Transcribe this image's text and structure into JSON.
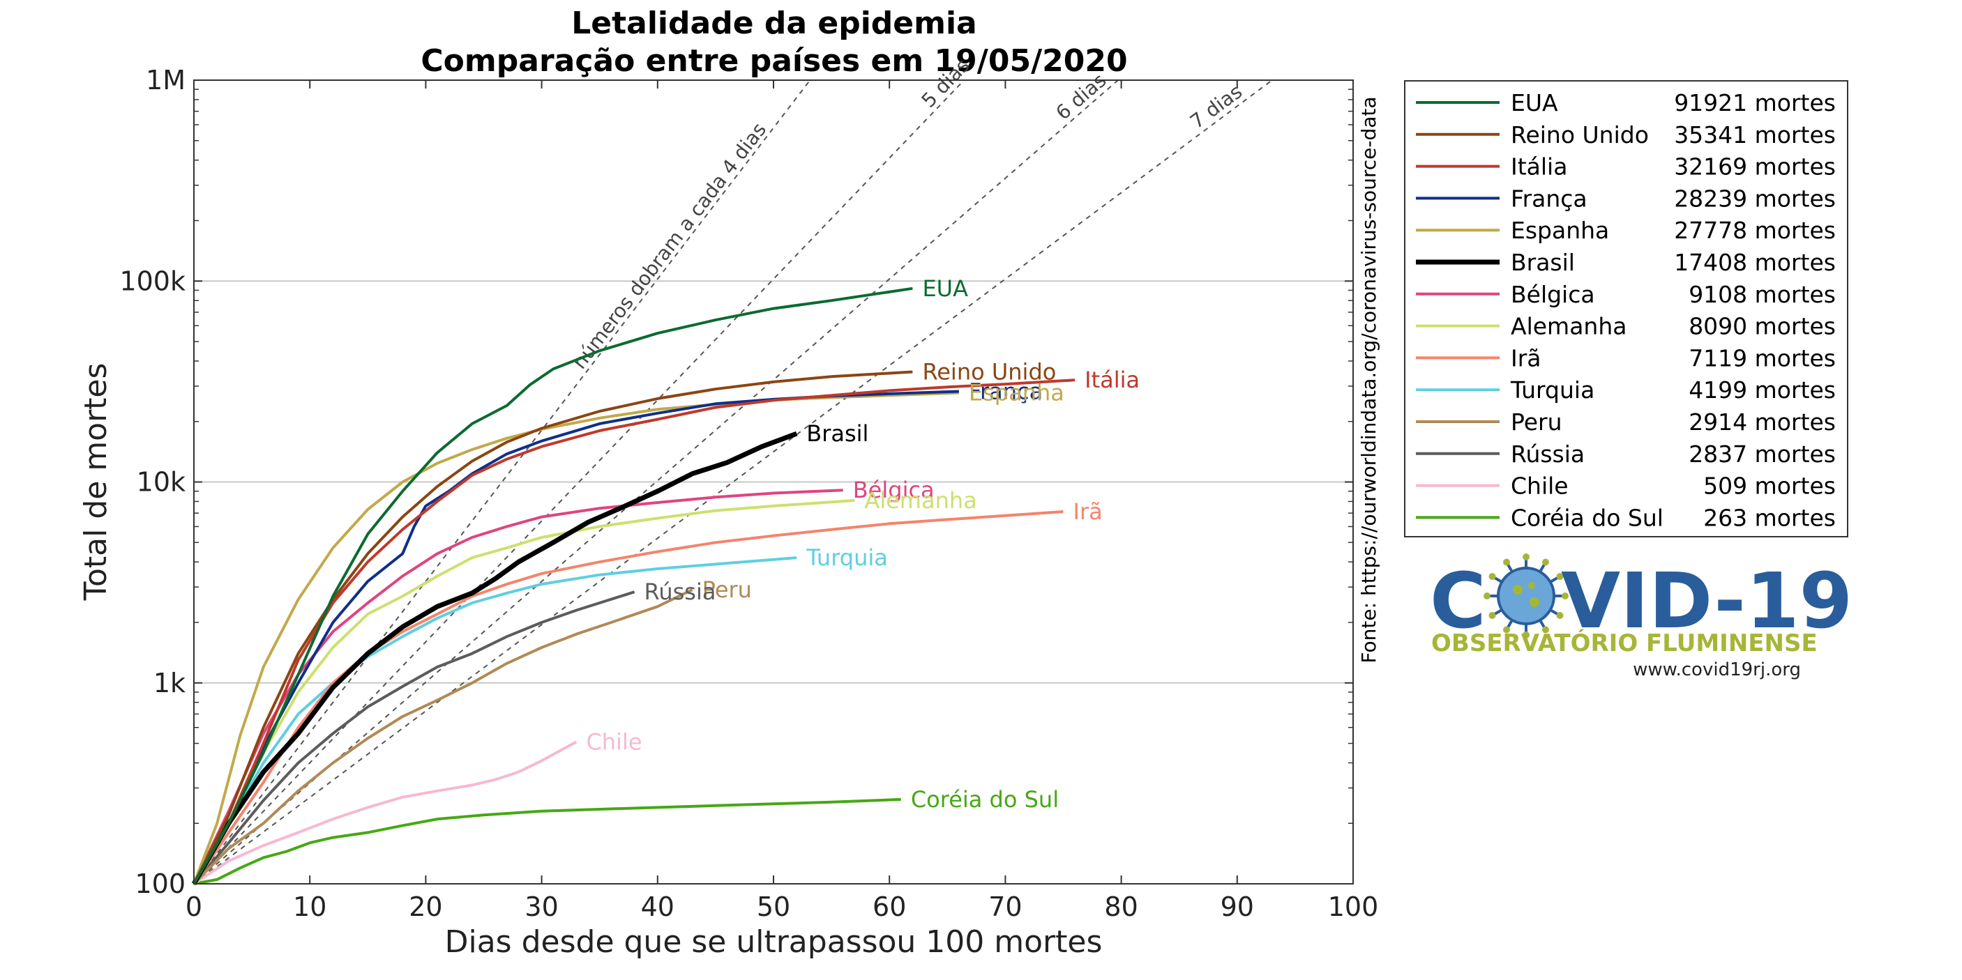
{
  "chart_data": {
    "type": "line",
    "title": "Letalidade da epidemia",
    "subtitle": "Comparação entre países em 19/05/2020",
    "xlabel": "Dias desde que se ultrapassou 100 mortes",
    "ylabel": "Total de mortes",
    "xlim": [
      0,
      100
    ],
    "ylim": [
      100,
      1000000
    ],
    "yscale": "log",
    "x_ticks": [
      0,
      10,
      20,
      30,
      40,
      50,
      60,
      70,
      80,
      90,
      100
    ],
    "y_ticks": [
      {
        "value": 100,
        "label": "100"
      },
      {
        "value": 1000,
        "label": "1k"
      },
      {
        "value": 10000,
        "label": "10k"
      },
      {
        "value": 100000,
        "label": "100k"
      },
      {
        "value": 1000000,
        "label": "1M"
      }
    ],
    "grid": "horizontal",
    "legend": "right",
    "source": "Fonte: https://ourworldindata.org/coronavirus-source-data",
    "reference_lines": [
      {
        "doubling_days": 4,
        "label": "números dobram a cada 4 dias"
      },
      {
        "doubling_days": 5,
        "label": "5 dias"
      },
      {
        "doubling_days": 6,
        "label": "6 dias"
      },
      {
        "doubling_days": 7,
        "label": "7 dias"
      }
    ],
    "series": [
      {
        "name": "EUA",
        "deaths": 91921,
        "legend_value": "91921 mortes",
        "color": "#0b6b30",
        "width": 4,
        "points": [
          [
            0,
            100
          ],
          [
            3,
            200
          ],
          [
            6,
            450
          ],
          [
            9,
            1100
          ],
          [
            12,
            2700
          ],
          [
            15,
            5500
          ],
          [
            18,
            9000
          ],
          [
            21,
            14000
          ],
          [
            24,
            19500
          ],
          [
            27,
            24000
          ],
          [
            29,
            30500
          ],
          [
            31,
            36500
          ],
          [
            35,
            45000
          ],
          [
            40,
            55000
          ],
          [
            45,
            64000
          ],
          [
            50,
            73000
          ],
          [
            55,
            80000
          ],
          [
            62,
            91921
          ]
        ]
      },
      {
        "name": "Reino Unido",
        "deaths": 35341,
        "legend_value": "35341 mortes",
        "color": "#8b4513",
        "width": 4,
        "points": [
          [
            0,
            100
          ],
          [
            3,
            220
          ],
          [
            6,
            600
          ],
          [
            9,
            1400
          ],
          [
            12,
            2600
          ],
          [
            15,
            4400
          ],
          [
            18,
            6700
          ],
          [
            21,
            9500
          ],
          [
            24,
            12700
          ],
          [
            27,
            15800
          ],
          [
            30,
            18500
          ],
          [
            35,
            22500
          ],
          [
            40,
            26000
          ],
          [
            45,
            29000
          ],
          [
            50,
            31500
          ],
          [
            55,
            33500
          ],
          [
            62,
            35341
          ]
        ]
      },
      {
        "name": "Itália",
        "deaths": 32169,
        "legend_value": "32169 mortes",
        "color": "#c0392b",
        "width": 4,
        "points": [
          [
            0,
            100
          ],
          [
            3,
            200
          ],
          [
            6,
            500
          ],
          [
            9,
            1300
          ],
          [
            12,
            2500
          ],
          [
            15,
            4000
          ],
          [
            18,
            5800
          ],
          [
            21,
            8000
          ],
          [
            24,
            10800
          ],
          [
            27,
            13000
          ],
          [
            30,
            15000
          ],
          [
            35,
            18000
          ],
          [
            40,
            20500
          ],
          [
            45,
            23500
          ],
          [
            50,
            25500
          ],
          [
            55,
            27000
          ],
          [
            60,
            28500
          ],
          [
            65,
            29700
          ],
          [
            70,
            30700
          ],
          [
            76,
            32169
          ]
        ]
      },
      {
        "name": "França",
        "deaths": 28239,
        "legend_value": "28239 mortes",
        "color": "#0f2f8a",
        "width": 4,
        "points": [
          [
            0,
            100
          ],
          [
            3,
            200
          ],
          [
            6,
            480
          ],
          [
            9,
            1000
          ],
          [
            12,
            2000
          ],
          [
            15,
            3200
          ],
          [
            18,
            4400
          ],
          [
            19,
            6000
          ],
          [
            20,
            7600
          ],
          [
            22,
            9000
          ],
          [
            24,
            11000
          ],
          [
            27,
            13800
          ],
          [
            30,
            16000
          ],
          [
            35,
            19500
          ],
          [
            40,
            22000
          ],
          [
            45,
            24500
          ],
          [
            50,
            25800
          ],
          [
            55,
            26800
          ],
          [
            60,
            27500
          ],
          [
            66,
            28239
          ]
        ]
      },
      {
        "name": "Espanha",
        "deaths": 27778,
        "legend_value": "27778 mortes",
        "color": "#c2a94b",
        "width": 4,
        "points": [
          [
            0,
            100
          ],
          [
            2,
            200
          ],
          [
            4,
            550
          ],
          [
            6,
            1200
          ],
          [
            9,
            2600
          ],
          [
            12,
            4700
          ],
          [
            15,
            7300
          ],
          [
            18,
            10000
          ],
          [
            21,
            12400
          ],
          [
            24,
            14500
          ],
          [
            27,
            16500
          ],
          [
            30,
            18300
          ],
          [
            35,
            20800
          ],
          [
            40,
            23000
          ],
          [
            45,
            24300
          ],
          [
            50,
            25600
          ],
          [
            55,
            26300
          ],
          [
            60,
            27000
          ],
          [
            66,
            27778
          ]
        ]
      },
      {
        "name": "Brasil",
        "deaths": 17408,
        "legend_value": "17408 mortes",
        "color": "#000000",
        "width": 7,
        "points": [
          [
            0,
            100
          ],
          [
            3,
            200
          ],
          [
            6,
            360
          ],
          [
            9,
            560
          ],
          [
            12,
            950
          ],
          [
            15,
            1400
          ],
          [
            18,
            1900
          ],
          [
            21,
            2400
          ],
          [
            24,
            2800
          ],
          [
            26,
            3300
          ],
          [
            28,
            4000
          ],
          [
            31,
            5000
          ],
          [
            34,
            6300
          ],
          [
            37,
            7500
          ],
          [
            40,
            9000
          ],
          [
            43,
            11000
          ],
          [
            46,
            12500
          ],
          [
            49,
            15000
          ],
          [
            52,
            17408
          ]
        ]
      },
      {
        "name": "Bélgica",
        "deaths": 9108,
        "legend_value": "9108 mortes",
        "color": "#e0447e",
        "width": 4,
        "points": [
          [
            0,
            100
          ],
          [
            3,
            230
          ],
          [
            6,
            560
          ],
          [
            9,
            1100
          ],
          [
            12,
            1800
          ],
          [
            15,
            2500
          ],
          [
            18,
            3400
          ],
          [
            21,
            4400
          ],
          [
            24,
            5300
          ],
          [
            27,
            6000
          ],
          [
            30,
            6700
          ],
          [
            35,
            7400
          ],
          [
            40,
            7900
          ],
          [
            45,
            8400
          ],
          [
            50,
            8800
          ],
          [
            56,
            9108
          ]
        ]
      },
      {
        "name": "Alemanha",
        "deaths": 8090,
        "legend_value": "8090 mortes",
        "color": "#cde06c",
        "width": 4,
        "points": [
          [
            0,
            100
          ],
          [
            3,
            200
          ],
          [
            6,
            450
          ],
          [
            9,
            900
          ],
          [
            12,
            1500
          ],
          [
            15,
            2200
          ],
          [
            18,
            2700
          ],
          [
            21,
            3400
          ],
          [
            24,
            4200
          ],
          [
            27,
            4700
          ],
          [
            30,
            5300
          ],
          [
            35,
            6000
          ],
          [
            40,
            6600
          ],
          [
            45,
            7200
          ],
          [
            50,
            7600
          ],
          [
            57,
            8090
          ]
        ]
      },
      {
        "name": "Irã",
        "deaths": 7119,
        "legend_value": "7119 mortes",
        "color": "#f4846c",
        "width": 4,
        "points": [
          [
            0,
            100
          ],
          [
            3,
            180
          ],
          [
            6,
            320
          ],
          [
            9,
            600
          ],
          [
            12,
            1000
          ],
          [
            15,
            1400
          ],
          [
            18,
            1800
          ],
          [
            21,
            2200
          ],
          [
            24,
            2700
          ],
          [
            27,
            3100
          ],
          [
            30,
            3500
          ],
          [
            35,
            4000
          ],
          [
            40,
            4500
          ],
          [
            45,
            5000
          ],
          [
            50,
            5400
          ],
          [
            55,
            5800
          ],
          [
            60,
            6200
          ],
          [
            65,
            6500
          ],
          [
            70,
            6800
          ],
          [
            75,
            7119
          ]
        ]
      },
      {
        "name": "Turquia",
        "deaths": 4199,
        "legend_value": "4199 mortes",
        "color": "#5ecfe0",
        "width": 4,
        "points": [
          [
            0,
            100
          ],
          [
            3,
            200
          ],
          [
            6,
            400
          ],
          [
            9,
            700
          ],
          [
            12,
            1000
          ],
          [
            15,
            1350
          ],
          [
            18,
            1700
          ],
          [
            21,
            2100
          ],
          [
            24,
            2500
          ],
          [
            27,
            2800
          ],
          [
            30,
            3100
          ],
          [
            35,
            3450
          ],
          [
            40,
            3700
          ],
          [
            45,
            3900
          ],
          [
            52,
            4199
          ]
        ]
      },
      {
        "name": "Peru",
        "deaths": 2914,
        "legend_value": "2914 mortes",
        "color": "#b08a55",
        "width": 4,
        "points": [
          [
            0,
            100
          ],
          [
            3,
            150
          ],
          [
            6,
            200
          ],
          [
            9,
            290
          ],
          [
            12,
            400
          ],
          [
            15,
            530
          ],
          [
            18,
            680
          ],
          [
            21,
            820
          ],
          [
            24,
            1000
          ],
          [
            27,
            1250
          ],
          [
            30,
            1500
          ],
          [
            33,
            1750
          ],
          [
            36,
            2000
          ],
          [
            40,
            2400
          ],
          [
            43,
            2914
          ]
        ]
      },
      {
        "name": "Rússia",
        "deaths": 2837,
        "legend_value": "2837 mortes",
        "color": "#5c5c5c",
        "width": 4,
        "points": [
          [
            0,
            100
          ],
          [
            3,
            160
          ],
          [
            6,
            260
          ],
          [
            9,
            400
          ],
          [
            12,
            560
          ],
          [
            15,
            760
          ],
          [
            18,
            960
          ],
          [
            21,
            1200
          ],
          [
            24,
            1400
          ],
          [
            27,
            1700
          ],
          [
            30,
            2000
          ],
          [
            33,
            2300
          ],
          [
            38,
            2837
          ]
        ]
      },
      {
        "name": "Chile",
        "deaths": 509,
        "legend_value": "509 mortes",
        "color": "#f7b8d2",
        "width": 4,
        "points": [
          [
            0,
            100
          ],
          [
            3,
            130
          ],
          [
            6,
            155
          ],
          [
            9,
            180
          ],
          [
            12,
            210
          ],
          [
            15,
            240
          ],
          [
            18,
            270
          ],
          [
            21,
            290
          ],
          [
            24,
            310
          ],
          [
            26,
            330
          ],
          [
            28,
            360
          ],
          [
            30,
            410
          ],
          [
            33,
            509
          ]
        ]
      },
      {
        "name": "Coréia do Sul",
        "deaths": 263,
        "legend_value": "263 mortes",
        "color": "#46a814",
        "width": 4,
        "points": [
          [
            0,
            100
          ],
          [
            2,
            105
          ],
          [
            4,
            120
          ],
          [
            6,
            135
          ],
          [
            8,
            145
          ],
          [
            10,
            160
          ],
          [
            12,
            170
          ],
          [
            15,
            180
          ],
          [
            18,
            195
          ],
          [
            21,
            210
          ],
          [
            25,
            220
          ],
          [
            30,
            230
          ],
          [
            35,
            235
          ],
          [
            40,
            240
          ],
          [
            45,
            245
          ],
          [
            50,
            250
          ],
          [
            55,
            255
          ],
          [
            61,
            263
          ]
        ]
      }
    ]
  },
  "logo": {
    "word_left": "C",
    "word_right": "VID-19",
    "subtitle": "OBSERVATÓRIO FLUMINENSE",
    "url": "www.covid19rj.org"
  }
}
